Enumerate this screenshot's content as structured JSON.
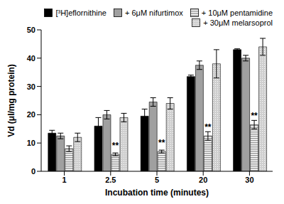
{
  "chart_data": {
    "type": "bar",
    "x_label": "Incubation time (minutes)",
    "y_label": "Vd (μl/mg protein)",
    "categories": [
      "1",
      "2.5",
      "5",
      "20",
      "30"
    ],
    "series": [
      {
        "name": "[³H]eflornithine",
        "color": "#000000",
        "values": [
          13.5,
          16,
          19.5,
          33.5,
          43
        ],
        "errors": [
          1,
          3,
          2.5,
          0.5,
          0.3
        ]
      },
      {
        "name": "+ 6μM nifurtimox",
        "color": "#a0a0a0",
        "values": [
          12.5,
          20,
          24.5,
          37.5,
          40
        ],
        "errors": [
          1,
          1.5,
          1.5,
          1.5,
          1
        ]
      },
      {
        "name": "+ 10μM pentamidine",
        "color": "#9a9a9a",
        "values": [
          8,
          6,
          7,
          12.5,
          16.5
        ],
        "errors": [
          1,
          0.5,
          0.5,
          1.5,
          1.5
        ]
      },
      {
        "name": "+ 30μM melarsoprol",
        "color": "#cfcfcf",
        "values": [
          12,
          19,
          24,
          38,
          44
        ],
        "errors": [
          1.5,
          1.5,
          2,
          5,
          3
        ]
      }
    ],
    "annotations": [
      {
        "series": "+ 10μM pentamidine",
        "category": "2.5",
        "text": "**"
      },
      {
        "series": "+ 10μM pentamidine",
        "category": "5",
        "text": "**"
      },
      {
        "series": "+ 10μM pentamidine",
        "category": "20",
        "text": "**"
      },
      {
        "series": "+ 10μM pentamidine",
        "category": "30",
        "text": "**"
      }
    ],
    "ylim": [
      0,
      50
    ],
    "yticks": [
      0,
      10,
      20,
      30,
      40,
      50
    ],
    "grid": false,
    "legend": "top right"
  }
}
